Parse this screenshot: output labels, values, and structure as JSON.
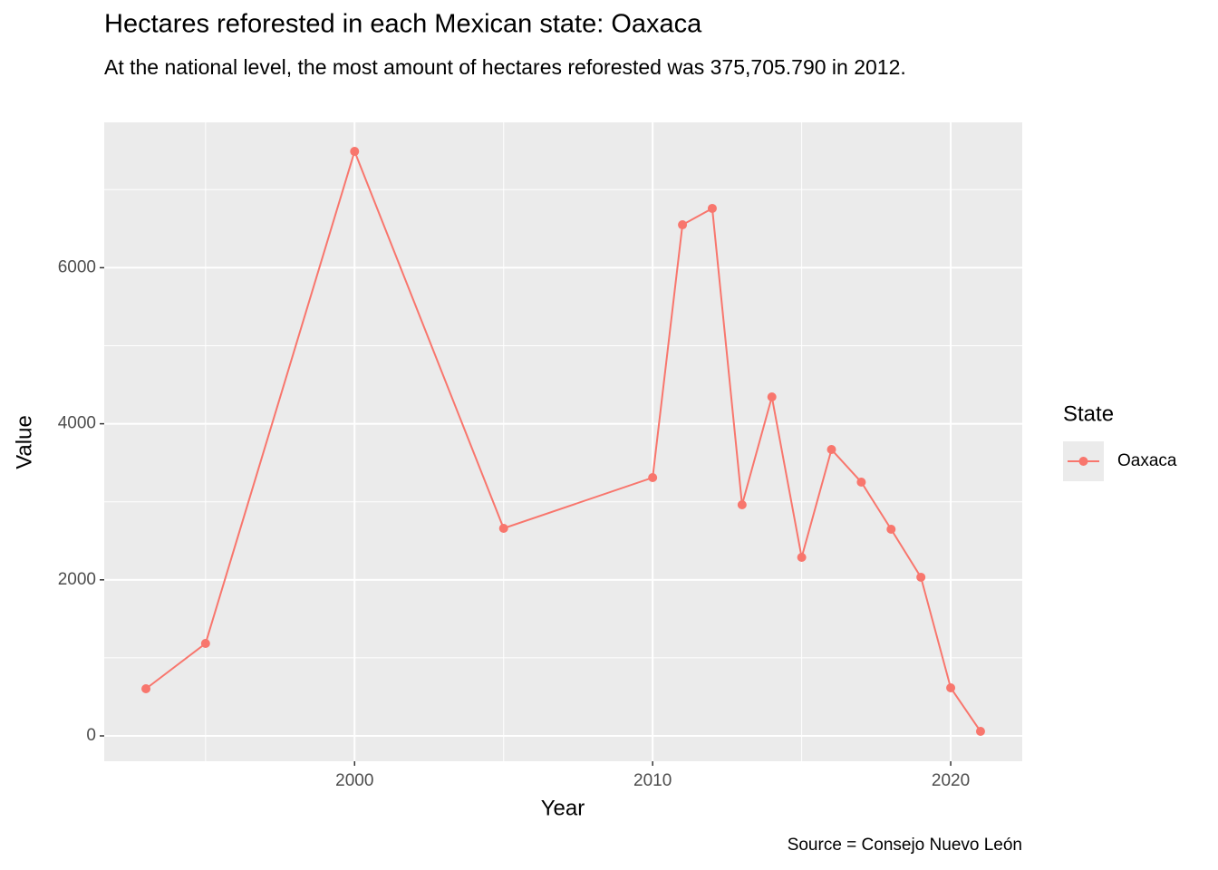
{
  "chart_data": {
    "type": "line",
    "title": "Hectares reforested in each Mexican state: Oaxaca",
    "subtitle": "At the national level, the most amount of hectares reforested was 375,705.790 in 2012.",
    "x_label": "Year",
    "y_label": "Value",
    "caption": "Source = Consejo Nuevo León",
    "legend_title": "State",
    "x": [
      1993,
      1995,
      2000,
      2005,
      2010,
      2011,
      2012,
      2013,
      2014,
      2015,
      2016,
      2017,
      2018,
      2019,
      2020,
      2021
    ],
    "series": [
      {
        "name": "Oaxaca",
        "color": "#f8766d",
        "values": [
          604,
          1185,
          7491,
          2660,
          3310,
          6550,
          6760,
          2962,
          4344,
          2288,
          3670,
          3252,
          2648,
          2033,
          616,
          58
        ]
      }
    ],
    "xlim": [
      1991.6,
      2022.4
    ],
    "xticks": [
      2000,
      2010,
      2020
    ],
    "ylim": [
      -325,
      7863
    ],
    "yticks": [
      0,
      2000,
      4000,
      6000
    ],
    "grid": true
  }
}
